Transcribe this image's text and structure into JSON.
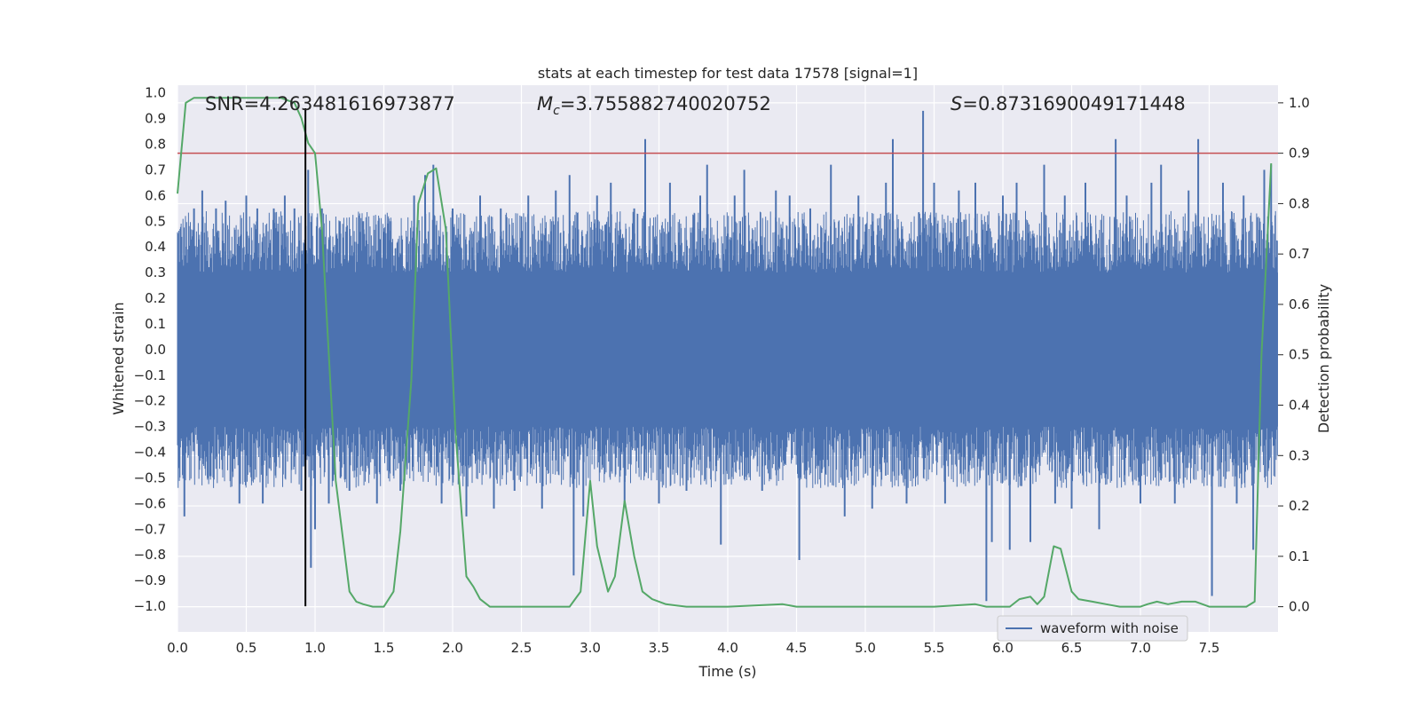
{
  "chart_data": {
    "type": "line",
    "title": "stats at each timestep for test data 17578 [signal=1]",
    "xlabel": "Time (s)",
    "ylabel": "Whitened strain",
    "y2label": "Detection probability",
    "xlim": [
      0.0,
      8.0
    ],
    "ylim": [
      -1.1,
      1.03
    ],
    "y2lim": [
      -0.05,
      1.035
    ],
    "x_ticks": [
      "0.0",
      "0.5",
      "1.0",
      "1.5",
      "2.0",
      "2.5",
      "3.0",
      "3.5",
      "4.0",
      "4.5",
      "5.0",
      "5.5",
      "6.0",
      "6.5",
      "7.0",
      "7.5"
    ],
    "y_ticks": [
      "1.0",
      "0.9",
      "0.8",
      "0.7",
      "0.6",
      "0.5",
      "0.4",
      "0.3",
      "0.2",
      "0.1",
      "0.0",
      "−0.1",
      "−0.2",
      "−0.3",
      "−0.4",
      "−0.5",
      "−0.6",
      "−0.7",
      "−0.8",
      "−0.9",
      "−1.0"
    ],
    "y2_ticks": [
      "1.0",
      "0.9",
      "0.8",
      "0.7",
      "0.6",
      "0.5",
      "0.4",
      "0.3",
      "0.2",
      "0.1",
      "0.0"
    ],
    "grid": true,
    "legend": {
      "entries": [
        "waveform with noise"
      ],
      "placement": "lower-right"
    },
    "annotations": {
      "snr": "SNR=4.263481616973877",
      "mc_symbol": "M",
      "mc_sub": "c",
      "mc_value": "=3.755882740020752",
      "s_symbol": "S",
      "s_value": "=0.8731690049171448"
    },
    "threshold_y2": 0.9,
    "vertical_marker_x": 0.93,
    "series": [
      {
        "name": "waveform with noise",
        "color": "#4c72b0",
        "axis": "left",
        "envelope": {
          "typical_high": 0.42,
          "typical_low": -0.42,
          "core": 0.3
        },
        "spikes": [
          [
            0.05,
            -0.65
          ],
          [
            0.12,
            0.55
          ],
          [
            0.18,
            0.62
          ],
          [
            0.22,
            -0.5
          ],
          [
            0.28,
            0.55
          ],
          [
            0.35,
            0.58
          ],
          [
            0.45,
            -0.6
          ],
          [
            0.5,
            0.6
          ],
          [
            0.58,
            0.55
          ],
          [
            0.62,
            -0.6
          ],
          [
            0.7,
            0.55
          ],
          [
            0.78,
            0.6
          ],
          [
            0.85,
            0.55
          ],
          [
            0.9,
            -0.55
          ],
          [
            0.95,
            0.7
          ],
          [
            0.97,
            -0.85
          ],
          [
            1.0,
            -0.7
          ],
          [
            1.05,
            0.55
          ],
          [
            1.1,
            -0.6
          ],
          [
            1.18,
            0.5
          ],
          [
            1.25,
            -0.55
          ],
          [
            1.35,
            0.5
          ],
          [
            1.45,
            -0.6
          ],
          [
            1.55,
            0.5
          ],
          [
            1.62,
            -0.55
          ],
          [
            1.72,
            0.6
          ],
          [
            1.8,
            0.68
          ],
          [
            1.86,
            0.72
          ],
          [
            1.92,
            -0.6
          ],
          [
            2.0,
            0.55
          ],
          [
            2.1,
            -0.65
          ],
          [
            2.2,
            0.6
          ],
          [
            2.3,
            -0.62
          ],
          [
            2.35,
            0.55
          ],
          [
            2.45,
            -0.55
          ],
          [
            2.55,
            0.6
          ],
          [
            2.65,
            -0.62
          ],
          [
            2.75,
            0.62
          ],
          [
            2.85,
            0.68
          ],
          [
            2.88,
            -0.88
          ],
          [
            2.95,
            -0.65
          ],
          [
            3.05,
            0.6
          ],
          [
            3.15,
            0.65
          ],
          [
            3.25,
            -0.6
          ],
          [
            3.32,
            0.55
          ],
          [
            3.4,
            0.82
          ],
          [
            3.5,
            -0.6
          ],
          [
            3.58,
            0.65
          ],
          [
            3.7,
            -0.55
          ],
          [
            3.8,
            0.6
          ],
          [
            3.85,
            0.72
          ],
          [
            3.95,
            -0.76
          ],
          [
            4.05,
            0.6
          ],
          [
            4.12,
            0.7
          ],
          [
            4.25,
            -0.55
          ],
          [
            4.35,
            0.62
          ],
          [
            4.45,
            0.6
          ],
          [
            4.52,
            -0.82
          ],
          [
            4.6,
            0.55
          ],
          [
            4.75,
            0.72
          ],
          [
            4.85,
            -0.65
          ],
          [
            4.95,
            0.6
          ],
          [
            5.05,
            -0.62
          ],
          [
            5.15,
            0.65
          ],
          [
            5.2,
            0.82
          ],
          [
            5.3,
            -0.6
          ],
          [
            5.42,
            0.93
          ],
          [
            5.5,
            0.65
          ],
          [
            5.58,
            -0.6
          ],
          [
            5.68,
            0.62
          ],
          [
            5.8,
            0.65
          ],
          [
            5.88,
            -0.98
          ],
          [
            5.92,
            -0.75
          ],
          [
            6.0,
            0.6
          ],
          [
            6.05,
            -0.78
          ],
          [
            6.1,
            0.65
          ],
          [
            6.2,
            -0.75
          ],
          [
            6.3,
            0.72
          ],
          [
            6.38,
            -0.6
          ],
          [
            6.45,
            0.6
          ],
          [
            6.5,
            -0.62
          ],
          [
            6.6,
            0.65
          ],
          [
            6.7,
            -0.7
          ],
          [
            6.82,
            0.82
          ],
          [
            6.9,
            0.6
          ],
          [
            7.0,
            -0.6
          ],
          [
            7.08,
            0.65
          ],
          [
            7.15,
            0.72
          ],
          [
            7.25,
            -0.6
          ],
          [
            7.35,
            0.62
          ],
          [
            7.42,
            0.82
          ],
          [
            7.52,
            -0.96
          ],
          [
            7.6,
            0.65
          ],
          [
            7.7,
            -0.6
          ],
          [
            7.75,
            0.6
          ],
          [
            7.82,
            -0.78
          ],
          [
            7.9,
            0.7
          ],
          [
            7.95,
            0.72
          ]
        ]
      },
      {
        "name": "",
        "color": "#55a868",
        "axis": "right",
        "x": [
          0.0,
          0.06,
          0.12,
          0.2,
          0.4,
          0.6,
          0.75,
          0.85,
          0.9,
          0.95,
          1.0,
          1.05,
          1.1,
          1.15,
          1.25,
          1.3,
          1.35,
          1.42,
          1.5,
          1.57,
          1.62,
          1.7,
          1.75,
          1.82,
          1.88,
          1.95,
          2.02,
          2.1,
          2.15,
          2.2,
          2.27,
          2.35,
          2.6,
          2.85,
          2.93,
          3.0,
          3.05,
          3.13,
          3.18,
          3.25,
          3.32,
          3.38,
          3.45,
          3.55,
          3.7,
          4.0,
          4.4,
          4.5,
          4.7,
          5.0,
          5.5,
          5.8,
          5.88,
          5.95,
          6.05,
          6.12,
          6.2,
          6.25,
          6.3,
          6.37,
          6.42,
          6.5,
          6.55,
          6.65,
          6.75,
          6.85,
          7.0,
          7.05,
          7.12,
          7.2,
          7.3,
          7.4,
          7.5,
          7.6,
          7.7,
          7.77,
          7.83,
          7.88,
          7.95
        ],
        "y": [
          0.82,
          1.0,
          1.01,
          1.01,
          1.01,
          1.01,
          1.01,
          1.0,
          0.97,
          0.92,
          0.9,
          0.75,
          0.5,
          0.25,
          0.03,
          0.01,
          0.005,
          0.0,
          0.0,
          0.03,
          0.15,
          0.45,
          0.8,
          0.86,
          0.87,
          0.75,
          0.35,
          0.06,
          0.04,
          0.015,
          0.0,
          0.0,
          0.0,
          0.0,
          0.03,
          0.25,
          0.12,
          0.03,
          0.06,
          0.21,
          0.1,
          0.03,
          0.015,
          0.005,
          0.0,
          0.0,
          0.005,
          0.0,
          0.0,
          0.0,
          0.0,
          0.005,
          0.0,
          0.0,
          0.0,
          0.015,
          0.02,
          0.005,
          0.02,
          0.12,
          0.115,
          0.03,
          0.015,
          0.01,
          0.005,
          0.0,
          0.0,
          0.005,
          0.01,
          0.005,
          0.01,
          0.01,
          0.0,
          0.0,
          0.0,
          0.0,
          0.01,
          0.5,
          0.88
        ]
      }
    ]
  }
}
